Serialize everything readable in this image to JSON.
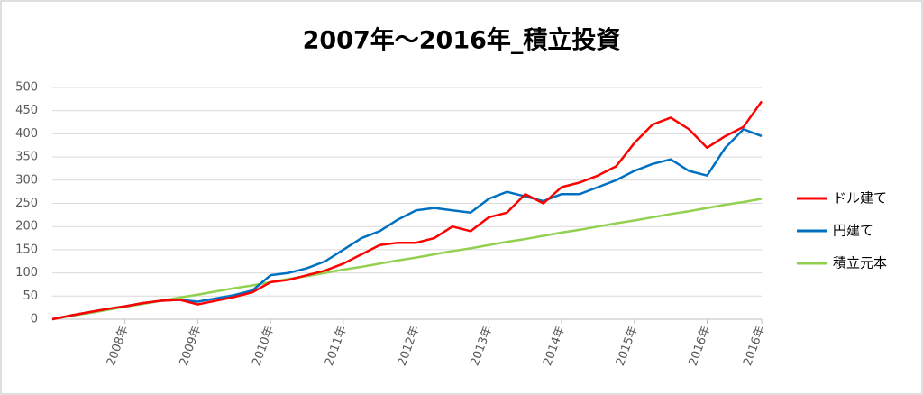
{
  "chart_data": {
    "type": "line",
    "title": "2007年～2016年_積立投資",
    "categories": [
      null,
      null,
      null,
      null,
      "2008年",
      null,
      null,
      null,
      "2009年",
      null,
      null,
      null,
      "2010年",
      null,
      null,
      null,
      "2011年",
      null,
      null,
      null,
      "2012年",
      null,
      null,
      null,
      "2013年",
      null,
      null,
      null,
      "2014年",
      null,
      null,
      null,
      "2015年",
      null,
      null,
      null,
      "2016年",
      null,
      null,
      "2016年"
    ],
    "series": [
      {
        "name": "ドル建て",
        "color": "#ff0000",
        "values": [
          0,
          8,
          15,
          22,
          28,
          35,
          40,
          42,
          32,
          40,
          48,
          58,
          80,
          85,
          95,
          105,
          120,
          140,
          160,
          165,
          165,
          175,
          200,
          190,
          220,
          230,
          270,
          250,
          285,
          295,
          310,
          330,
          380,
          420,
          435,
          410,
          370,
          395,
          415,
          470
        ]
      },
      {
        "name": "円建て",
        "color": "#0070c0",
        "values": [
          0,
          8,
          15,
          22,
          28,
          35,
          40,
          42,
          38,
          45,
          52,
          62,
          95,
          100,
          110,
          125,
          150,
          175,
          190,
          215,
          235,
          240,
          235,
          230,
          260,
          275,
          265,
          255,
          270,
          270,
          285,
          300,
          320,
          335,
          345,
          320,
          310,
          370,
          410,
          395
        ]
      },
      {
        "name": "積立元本",
        "color": "#92d050",
        "values": [
          0,
          7,
          13,
          20,
          27,
          33,
          40,
          47,
          53,
          60,
          67,
          73,
          80,
          87,
          93,
          100,
          107,
          113,
          120,
          127,
          133,
          140,
          147,
          153,
          160,
          167,
          173,
          180,
          187,
          193,
          200,
          207,
          213,
          220,
          227,
          233,
          240,
          247,
          253,
          260
        ]
      }
    ],
    "ylim": [
      0,
      500
    ],
    "yticks": [
      0,
      50,
      100,
      150,
      200,
      250,
      300,
      350,
      400,
      450,
      500
    ],
    "grid": true
  }
}
